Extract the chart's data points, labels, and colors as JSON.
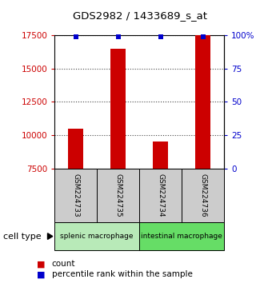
{
  "title": "GDS2982 / 1433689_s_at",
  "samples": [
    "GSM224733",
    "GSM224735",
    "GSM224734",
    "GSM224736"
  ],
  "counts": [
    10500,
    16500,
    9500,
    17500
  ],
  "percentile_ranks": [
    99,
    99,
    99,
    99
  ],
  "y_min": 7500,
  "y_max": 17500,
  "y_ticks_left": [
    7500,
    10000,
    12500,
    15000,
    17500
  ],
  "y_ticks_right": [
    0,
    25,
    50,
    75,
    100
  ],
  "bar_color": "#cc0000",
  "percentile_color": "#0000cc",
  "groups": [
    {
      "label": "splenic macrophage",
      "indices": [
        0,
        1
      ],
      "color": "#b8eab8"
    },
    {
      "label": "intestinal macrophage",
      "indices": [
        2,
        3
      ],
      "color": "#66dd66"
    }
  ],
  "cell_type_label": "cell type",
  "legend_count_label": "count",
  "legend_percentile_label": "percentile rank within the sample",
  "bar_width": 0.35,
  "dotted_line_color": "#444444",
  "axis_color_left": "#cc0000",
  "axis_color_right": "#0000cc",
  "sample_box_color": "#cccccc",
  "percentile_marker_size": 5
}
